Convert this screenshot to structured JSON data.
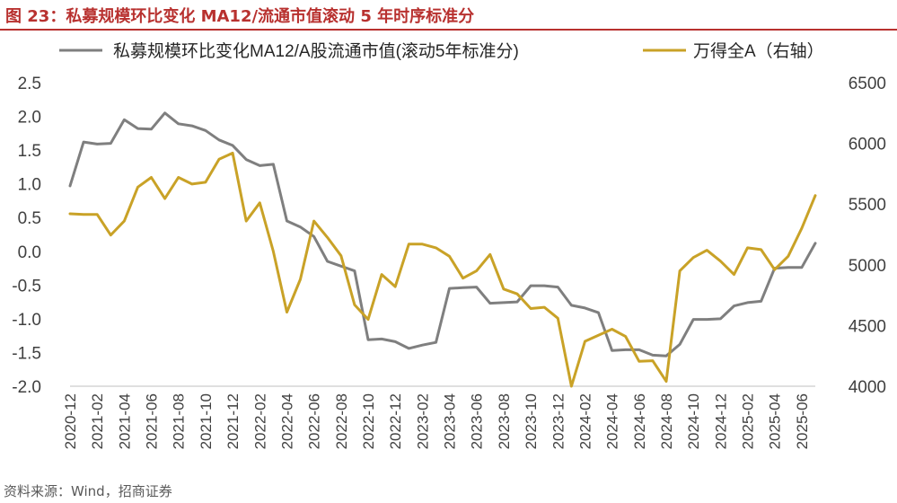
{
  "header": {
    "title": "图 23：私募规模环比变化 MA12/流通市值滚动 5 年时序标准分"
  },
  "footer": {
    "source": "资料来源：Wind，招商证券"
  },
  "colors": {
    "left_series": "#7f7f7f",
    "right_series": "#c9a227",
    "title": "#b8312f",
    "axis_text": "#404040"
  },
  "chart_data": {
    "type": "line",
    "title": "私募规模环比变化 MA12/流通市值滚动 5 年时序标准分",
    "xlabel": "",
    "ylabel": "",
    "legend_position": "top",
    "grid": false,
    "x": [
      "2020-12",
      "2021-01",
      "2021-02",
      "2021-03",
      "2021-04",
      "2021-05",
      "2021-06",
      "2021-07",
      "2021-08",
      "2021-09",
      "2021-10",
      "2021-11",
      "2021-12",
      "2022-01",
      "2022-02",
      "2022-03",
      "2022-04",
      "2022-05",
      "2022-06",
      "2022-07",
      "2022-08",
      "2022-09",
      "2022-10",
      "2022-11",
      "2022-12",
      "2023-01",
      "2023-02",
      "2023-03",
      "2023-04",
      "2023-05",
      "2023-06",
      "2023-07",
      "2023-08",
      "2023-09",
      "2023-10",
      "2023-11",
      "2023-12",
      "2024-01",
      "2024-02",
      "2024-03",
      "2024-04",
      "2024-05",
      "2024-06",
      "2024-07",
      "2024-08",
      "2024-09",
      "2024-10",
      "2024-11",
      "2024-12",
      "2025-01",
      "2025-02",
      "2025-03",
      "2025-04",
      "2025-05",
      "2025-06",
      "2025-07"
    ],
    "x_tick_labels": [
      "2020-12",
      "2021-02",
      "2021-04",
      "2021-06",
      "2021-08",
      "2021-10",
      "2021-12",
      "2022-02",
      "2022-04",
      "2022-06",
      "2022-08",
      "2022-10",
      "2022-12",
      "2023-02",
      "2023-04",
      "2023-06",
      "2023-08",
      "2023-10",
      "2023-12",
      "2024-02",
      "2024-04",
      "2024-06",
      "2024-08",
      "2024-10",
      "2024-12",
      "2025-02",
      "2025-04",
      "2025-06"
    ],
    "y_left": {
      "min": -2.0,
      "max": 2.5,
      "ticks": [
        "2.5",
        "2.0",
        "1.5",
        "1.0",
        "0.5",
        "0.0",
        "-0.5",
        "-1.0",
        "-1.5",
        "-2.0"
      ]
    },
    "y_right": {
      "min": 4000,
      "max": 6500,
      "ticks": [
        "6500",
        "6000",
        "5500",
        "5000",
        "4500",
        "4000"
      ]
    },
    "series": [
      {
        "name": "私募规模环比变化MA12/A股流通市值(滚动5年标准分)",
        "axis": "left",
        "values": [
          0.97,
          1.62,
          1.59,
          1.6,
          1.95,
          1.82,
          1.81,
          2.05,
          1.89,
          1.86,
          1.79,
          1.65,
          1.57,
          1.36,
          1.27,
          1.29,
          0.45,
          0.36,
          0.22,
          -0.15,
          -0.22,
          -0.29,
          -1.31,
          -1.3,
          -1.34,
          -1.44,
          -1.39,
          -1.35,
          -0.55,
          -0.54,
          -0.53,
          -0.77,
          -0.76,
          -0.75,
          -0.51,
          -0.51,
          -0.53,
          -0.8,
          -0.84,
          -0.91,
          -1.47,
          -1.46,
          -1.46,
          -1.54,
          -1.55,
          -1.38,
          -1.01,
          -1.01,
          -1.0,
          -0.81,
          -0.76,
          -0.74,
          -0.25,
          -0.24,
          -0.24,
          0.12
        ]
      },
      {
        "name": "万得全A（右轴）",
        "axis": "right",
        "values": [
          5420,
          5415,
          5415,
          5245,
          5360,
          5640,
          5720,
          5545,
          5720,
          5665,
          5680,
          5870,
          5920,
          5360,
          5510,
          5110,
          4610,
          4880,
          5360,
          5225,
          5075,
          4670,
          4550,
          4920,
          4820,
          5170,
          5170,
          5140,
          5070,
          4890,
          4950,
          5085,
          4800,
          4760,
          4640,
          4650,
          4560,
          4000,
          4370,
          4420,
          4470,
          4410,
          4205,
          4210,
          4040,
          4950,
          5060,
          5120,
          5030,
          4920,
          5140,
          5125,
          4960,
          5070,
          5300,
          5570
        ]
      }
    ]
  }
}
